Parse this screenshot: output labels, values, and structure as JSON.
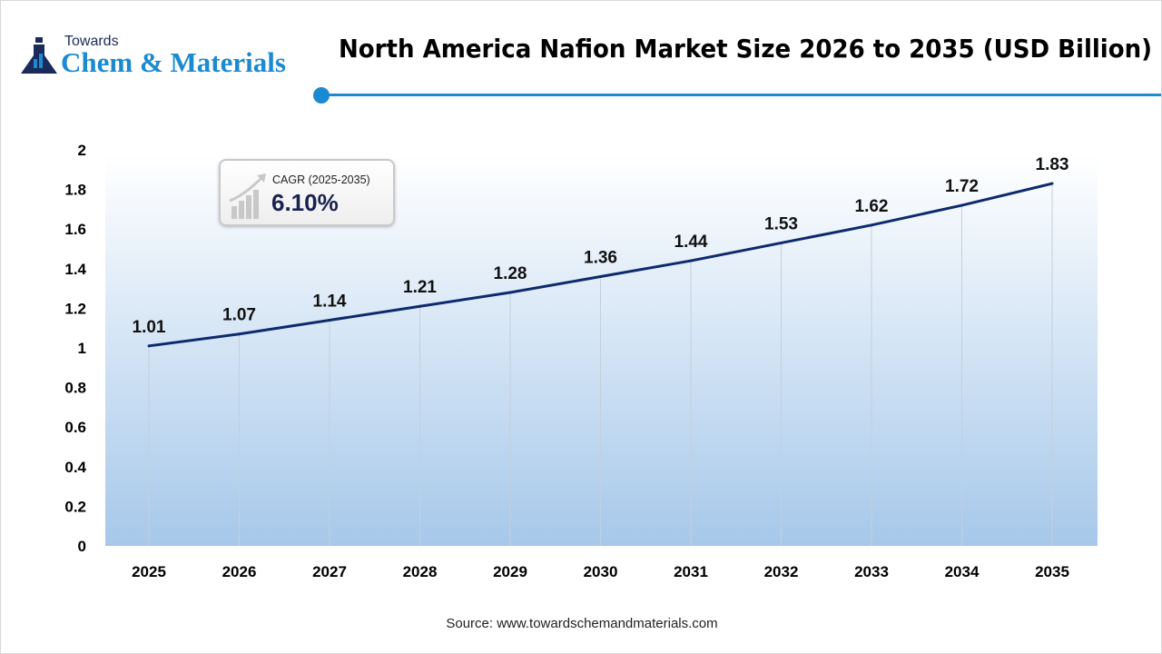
{
  "logo": {
    "line1": "Towards",
    "line2": "Chem & Materials"
  },
  "header": {
    "title": "North America Nafion Market Size 2026 to 2035 (USD Billion)"
  },
  "cagr": {
    "label": "CAGR (2025-2035)",
    "value": "6.10%"
  },
  "source": "Source: www.towardschemandmaterials.com",
  "colors": {
    "line": "#0e2a6e",
    "accent": "#1b8ad0",
    "fill_bottom": "#a6c8ea"
  },
  "chart_data": {
    "type": "area",
    "title": "North America Nafion Market Size 2026 to 2035 (USD Billion)",
    "categories": [
      "2025",
      "2026",
      "2027",
      "2028",
      "2029",
      "2030",
      "2031",
      "2032",
      "2033",
      "2034",
      "2035"
    ],
    "values": [
      1.01,
      1.07,
      1.14,
      1.21,
      1.28,
      1.36,
      1.44,
      1.53,
      1.62,
      1.72,
      1.83
    ],
    "yticks": [
      "0",
      "0.2",
      "0.4",
      "0.6",
      "0.8",
      "1",
      "1.2",
      "1.4",
      "1.6",
      "1.8",
      "2"
    ],
    "ylim": [
      0,
      2
    ],
    "grid": "vertical",
    "legend": "none"
  }
}
